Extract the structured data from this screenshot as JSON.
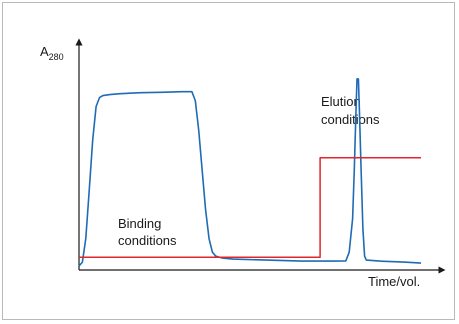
{
  "chart_data": {
    "type": "line",
    "title": "",
    "ylabel": {
      "main": "A",
      "subscript": "280"
    },
    "xlabel": "Time/vol.",
    "annotations": {
      "binding": [
        "Binding",
        "conditions"
      ],
      "elution": [
        "Elution",
        "conditions"
      ]
    },
    "xlim": [
      0,
      100
    ],
    "ylim": [
      0,
      100
    ],
    "grid": false,
    "legend": "none",
    "series": [
      {
        "color": "#1f6bb5",
        "points": [
          [
            0,
            1
          ],
          [
            1,
            3
          ],
          [
            2,
            15
          ],
          [
            3,
            40
          ],
          [
            4,
            65
          ],
          [
            5,
            82
          ],
          [
            6,
            86.5
          ],
          [
            7,
            87.5
          ],
          [
            9,
            88
          ],
          [
            12,
            88.5
          ],
          [
            18,
            89
          ],
          [
            24,
            89.2
          ],
          [
            30,
            89.5
          ],
          [
            33,
            89.5
          ],
          [
            34,
            85
          ],
          [
            35,
            70
          ],
          [
            36,
            50
          ],
          [
            37,
            30
          ],
          [
            38,
            15
          ],
          [
            39,
            8
          ],
          [
            40,
            6
          ],
          [
            42,
            5
          ],
          [
            45,
            4.5
          ],
          [
            55,
            4
          ],
          [
            65,
            3.5
          ],
          [
            75,
            3.5
          ],
          [
            78,
            3.6
          ],
          [
            79,
            8
          ],
          [
            80,
            25
          ],
          [
            80.5,
            50
          ],
          [
            81,
            80
          ],
          [
            81.3,
            96
          ],
          [
            81.7,
            96
          ],
          [
            82,
            80
          ],
          [
            82.5,
            50
          ],
          [
            83,
            20
          ],
          [
            83.5,
            6
          ],
          [
            84,
            4
          ],
          [
            88,
            3.5
          ],
          [
            95,
            3
          ],
          [
            100,
            2.5
          ]
        ]
      },
      {
        "color": "#e0252b",
        "points": [
          [
            0,
            5.5
          ],
          [
            70.5,
            5.5
          ],
          [
            70.5,
            56
          ],
          [
            100,
            56
          ]
        ]
      }
    ]
  }
}
